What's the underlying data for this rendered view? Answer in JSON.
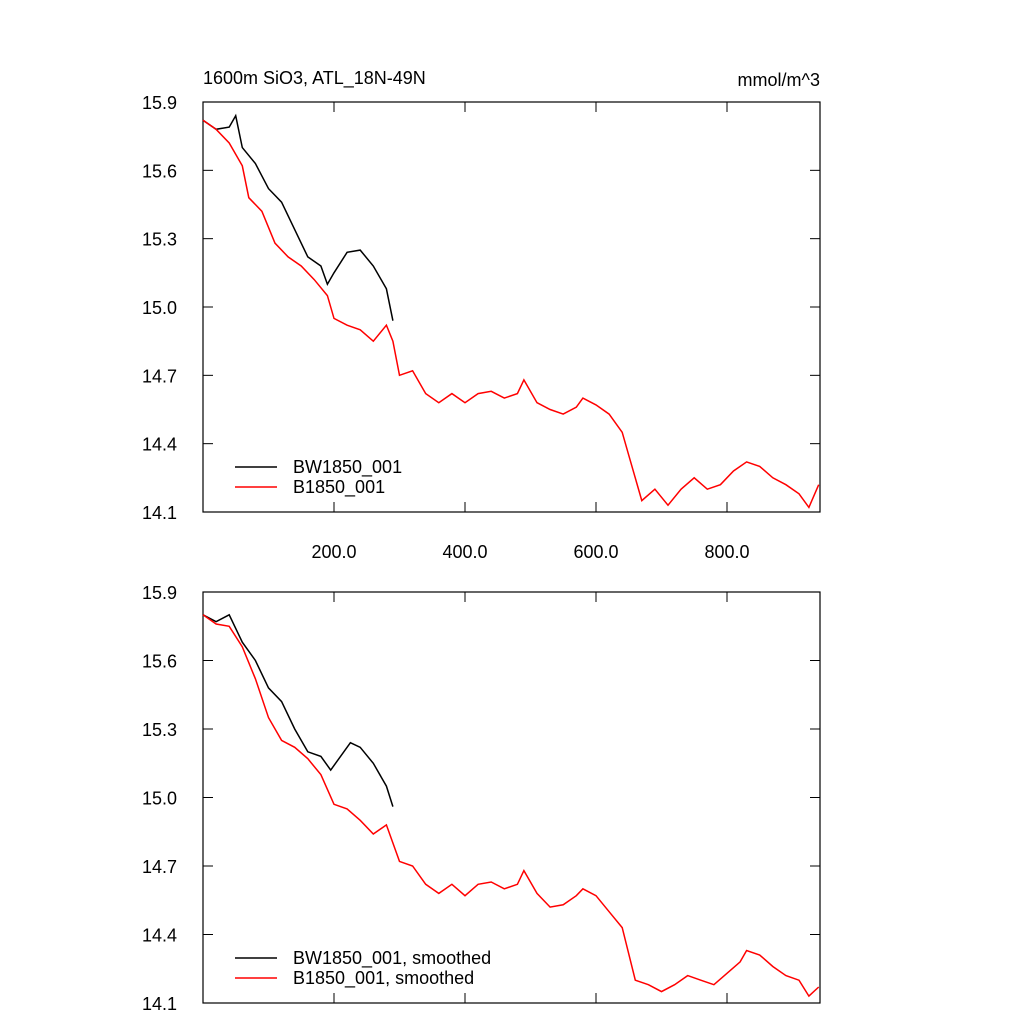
{
  "chart_data": [
    {
      "type": "line",
      "title": "1600m SiO3, ATL_18N-49N",
      "units": "mmol/m^3",
      "xlim": [
        0,
        942
      ],
      "ylim": [
        14.1,
        15.9
      ],
      "xticks": [
        {
          "value": 200,
          "label": "200.0"
        },
        {
          "value": 400,
          "label": "400.0"
        },
        {
          "value": 600,
          "label": "600.0"
        },
        {
          "value": 800,
          "label": "800.0"
        }
      ],
      "yticks": [
        14.1,
        14.4,
        14.7,
        {
          "value": 15,
          "label": "15.0"
        },
        15.3,
        15.6,
        15.9
      ],
      "legend": "lower left",
      "series": [
        {
          "name": "BW1850_001",
          "color": "#000000",
          "x": [
            0,
            20,
            40,
            50,
            60,
            80,
            100,
            120,
            140,
            160,
            180,
            190,
            200,
            220,
            240,
            260,
            280,
            290
          ],
          "values": [
            15.82,
            15.78,
            15.79,
            15.84,
            15.7,
            15.63,
            15.52,
            15.46,
            15.34,
            15.22,
            15.18,
            15.1,
            15.15,
            15.24,
            15.25,
            15.18,
            15.08,
            14.94
          ]
        },
        {
          "name": "B1850_001",
          "color": "#ff0000",
          "x": [
            0,
            20,
            40,
            60,
            70,
            90,
            110,
            130,
            150,
            170,
            190,
            200,
            220,
            240,
            260,
            280,
            290,
            300,
            320,
            340,
            360,
            380,
            400,
            420,
            440,
            460,
            480,
            490,
            510,
            530,
            550,
            570,
            580,
            600,
            620,
            640,
            650,
            670,
            690,
            710,
            730,
            750,
            770,
            790,
            810,
            830,
            850,
            870,
            890,
            910,
            925,
            940
          ],
          "values": [
            15.82,
            15.78,
            15.72,
            15.62,
            15.48,
            15.42,
            15.28,
            15.22,
            15.18,
            15.12,
            15.05,
            14.95,
            14.92,
            14.9,
            14.85,
            14.92,
            14.85,
            14.7,
            14.72,
            14.62,
            14.58,
            14.62,
            14.58,
            14.62,
            14.63,
            14.6,
            14.62,
            14.68,
            14.58,
            14.55,
            14.53,
            14.56,
            14.6,
            14.57,
            14.53,
            14.45,
            14.35,
            14.15,
            14.2,
            14.13,
            14.2,
            14.25,
            14.2,
            14.22,
            14.28,
            14.32,
            14.3,
            14.25,
            14.22,
            14.18,
            14.12,
            14.22
          ]
        }
      ]
    },
    {
      "type": "line",
      "xlim": [
        0,
        942
      ],
      "ylim": [
        14.1,
        15.9
      ],
      "xticks": [
        200,
        400,
        600,
        800
      ],
      "yticks": [
        14.1,
        14.4,
        14.7,
        {
          "value": 15,
          "label": "15.0"
        },
        15.3,
        15.6,
        15.9
      ],
      "legend": "lower left",
      "series": [
        {
          "name": "BW1850_001, smoothed",
          "color": "#000000",
          "x": [
            0,
            20,
            40,
            60,
            80,
            100,
            120,
            140,
            160,
            180,
            195,
            210,
            225,
            240,
            260,
            280,
            290
          ],
          "values": [
            15.8,
            15.77,
            15.8,
            15.68,
            15.6,
            15.48,
            15.42,
            15.3,
            15.2,
            15.18,
            15.12,
            15.18,
            15.24,
            15.22,
            15.15,
            15.05,
            14.96
          ]
        },
        {
          "name": "B1850_001, smoothed",
          "color": "#ff0000",
          "x": [
            0,
            20,
            40,
            60,
            80,
            100,
            120,
            140,
            160,
            180,
            200,
            220,
            240,
            260,
            280,
            300,
            320,
            340,
            360,
            380,
            400,
            420,
            440,
            460,
            480,
            490,
            510,
            530,
            550,
            570,
            580,
            600,
            620,
            640,
            660,
            680,
            700,
            720,
            740,
            760,
            780,
            800,
            820,
            830,
            850,
            870,
            890,
            910,
            925,
            940
          ],
          "values": [
            15.8,
            15.76,
            15.75,
            15.66,
            15.52,
            15.35,
            15.25,
            15.22,
            15.17,
            15.1,
            14.97,
            14.95,
            14.9,
            14.84,
            14.88,
            14.72,
            14.7,
            14.62,
            14.58,
            14.62,
            14.57,
            14.62,
            14.63,
            14.6,
            14.62,
            14.68,
            14.58,
            14.52,
            14.53,
            14.57,
            14.6,
            14.57,
            14.5,
            14.43,
            14.2,
            14.18,
            14.15,
            14.18,
            14.22,
            14.2,
            14.18,
            14.23,
            14.28,
            14.33,
            14.31,
            14.26,
            14.22,
            14.2,
            14.13,
            14.17
          ]
        }
      ]
    }
  ]
}
